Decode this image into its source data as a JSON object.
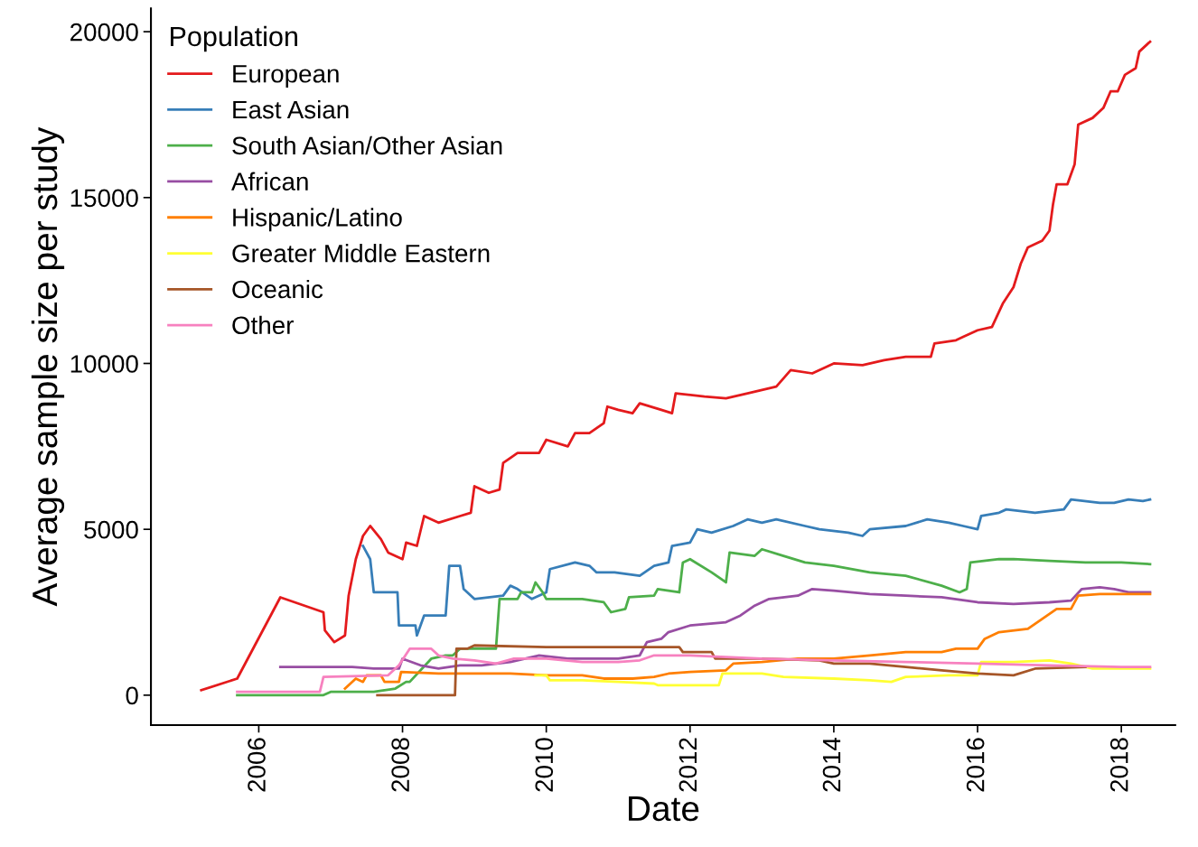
{
  "chart_data": {
    "type": "line",
    "xlabel": "Date",
    "ylabel": "Average sample size per study",
    "legend_title": "Population",
    "legend": "top left",
    "grid": false,
    "xlim": [
      2004.5,
      2018.75
    ],
    "xticks": [
      2006,
      2008,
      2010,
      2012,
      2014,
      2016,
      2018
    ],
    "ylim": [
      -900,
      20700
    ],
    "yticks": [
      0,
      5000,
      10000,
      15000,
      20000
    ],
    "series": [
      {
        "name": "European",
        "color": "#e41a1c",
        "x": [
          2005.2,
          2005.7,
          2006.3,
          2006.9,
          2006.92,
          2007.05,
          2007.2,
          2007.25,
          2007.35,
          2007.45,
          2007.55,
          2007.7,
          2007.8,
          2008.0,
          2008.05,
          2008.2,
          2008.3,
          2008.5,
          2008.8,
          2008.95,
          2009.0,
          2009.2,
          2009.35,
          2009.4,
          2009.6,
          2009.9,
          2010.0,
          2010.3,
          2010.4,
          2010.6,
          2010.8,
          2010.85,
          2011.0,
          2011.2,
          2011.3,
          2011.6,
          2011.75,
          2011.8,
          2012.2,
          2012.5,
          2012.8,
          2013.0,
          2013.2,
          2013.4,
          2013.7,
          2014.0,
          2014.4,
          2014.7,
          2015.0,
          2015.35,
          2015.4,
          2015.7,
          2015.8,
          2016.0,
          2016.2,
          2016.35,
          2016.5,
          2016.6,
          2016.7,
          2016.9,
          2017.0,
          2017.05,
          2017.1,
          2017.25,
          2017.35,
          2017.4,
          2017.6,
          2017.75,
          2017.85,
          2017.95,
          2018.05,
          2018.2,
          2018.25,
          2018.4
        ],
        "values": [
          150,
          500,
          2950,
          2500,
          1950,
          1600,
          1800,
          3000,
          4100,
          4800,
          5100,
          4700,
          4300,
          4100,
          4600,
          4500,
          5400,
          5200,
          5400,
          5500,
          6300,
          6100,
          6200,
          7000,
          7300,
          7300,
          7700,
          7500,
          7900,
          7900,
          8200,
          8700,
          8600,
          8500,
          8800,
          8600,
          8500,
          9100,
          9000,
          8950,
          9100,
          9200,
          9300,
          9800,
          9700,
          10000,
          9950,
          10100,
          10200,
          10200,
          10600,
          10700,
          10800,
          11000,
          11100,
          11800,
          12300,
          13000,
          13500,
          13700,
          14000,
          14800,
          15400,
          15400,
          16000,
          17200,
          17400,
          17700,
          18200,
          18200,
          18700,
          18900,
          19400,
          19700
        ]
      },
      {
        "name": "East Asian",
        "color": "#377eb8",
        "x": [
          2007.45,
          2007.55,
          2007.6,
          2007.93,
          2007.95,
          2008.18,
          2008.2,
          2008.3,
          2008.6,
          2008.65,
          2008.8,
          2008.85,
          2009.0,
          2009.4,
          2009.5,
          2009.6,
          2009.8,
          2010.0,
          2010.05,
          2010.4,
          2010.6,
          2010.7,
          2010.95,
          2011.3,
          2011.5,
          2011.7,
          2011.75,
          2012.0,
          2012.1,
          2012.3,
          2012.6,
          2012.8,
          2013.0,
          2013.2,
          2013.6,
          2013.8,
          2014.2,
          2014.4,
          2014.5,
          2015.0,
          2015.3,
          2015.6,
          2015.8,
          2016.0,
          2016.05,
          2016.3,
          2016.4,
          2016.8,
          2017.2,
          2017.3,
          2017.7,
          2017.9,
          2018.1,
          2018.3,
          2018.4
        ],
        "values": [
          4500,
          4100,
          3100,
          3100,
          2100,
          2100,
          1800,
          2400,
          2400,
          3900,
          3900,
          3200,
          2900,
          3000,
          3300,
          3200,
          2900,
          3100,
          3800,
          4000,
          3900,
          3700,
          3700,
          3600,
          3900,
          4000,
          4500,
          4600,
          5000,
          4900,
          5100,
          5300,
          5200,
          5300,
          5100,
          5000,
          4900,
          4800,
          5000,
          5100,
          5300,
          5200,
          5100,
          5000,
          5400,
          5500,
          5600,
          5500,
          5600,
          5900,
          5800,
          5800,
          5900,
          5850,
          5900
        ]
      },
      {
        "name": "South Asian/Other Asian",
        "color": "#4daf4a",
        "x": [
          2005.7,
          2006.9,
          2007.0,
          2007.6,
          2007.9,
          2008.05,
          2008.1,
          2008.4,
          2008.6,
          2008.7,
          2008.8,
          2009.3,
          2009.35,
          2009.6,
          2009.65,
          2009.8,
          2009.85,
          2009.95,
          2010.0,
          2010.5,
          2010.8,
          2010.9,
          2011.1,
          2011.15,
          2011.5,
          2011.55,
          2011.85,
          2011.9,
          2012.0,
          2012.3,
          2012.5,
          2012.55,
          2012.9,
          2013.0,
          2013.3,
          2013.6,
          2014.0,
          2014.5,
          2015.0,
          2015.5,
          2015.75,
          2015.85,
          2015.9,
          2016.3,
          2016.5,
          2017.0,
          2017.5,
          2018.0,
          2018.4
        ],
        "values": [
          0,
          0,
          100,
          100,
          200,
          400,
          400,
          1100,
          1200,
          1200,
          1400,
          1400,
          2900,
          2900,
          3100,
          3100,
          3400,
          3100,
          2900,
          2900,
          2800,
          2500,
          2600,
          2950,
          3000,
          3200,
          3100,
          4000,
          4100,
          3700,
          3400,
          4300,
          4200,
          4400,
          4200,
          4000,
          3900,
          3700,
          3600,
          3300,
          3100,
          3200,
          4000,
          4100,
          4100,
          4050,
          4000,
          4000,
          3950
        ]
      },
      {
        "name": "African",
        "color": "#984ea3",
        "x": [
          2006.3,
          2007.3,
          2007.6,
          2007.95,
          2008.0,
          2008.25,
          2008.5,
          2008.8,
          2009.1,
          2009.5,
          2009.9,
          2010.3,
          2011.0,
          2011.3,
          2011.4,
          2011.6,
          2011.7,
          2012.0,
          2012.5,
          2012.7,
          2012.9,
          2013.1,
          2013.5,
          2013.7,
          2014.0,
          2014.5,
          2015.0,
          2015.5,
          2016.0,
          2016.5,
          2017.0,
          2017.3,
          2017.45,
          2017.7,
          2017.9,
          2018.1,
          2018.4
        ],
        "values": [
          850,
          850,
          800,
          800,
          1100,
          900,
          800,
          900,
          900,
          1000,
          1200,
          1100,
          1100,
          1200,
          1600,
          1700,
          1900,
          2100,
          2200,
          2400,
          2700,
          2900,
          3000,
          3200,
          3150,
          3050,
          3000,
          2950,
          2800,
          2750,
          2800,
          2850,
          3200,
          3250,
          3200,
          3100,
          3100
        ]
      },
      {
        "name": "Hispanic/Latino",
        "color": "#ff7f00",
        "x": [
          2007.2,
          2007.35,
          2007.45,
          2007.5,
          2007.7,
          2007.75,
          2007.95,
          2007.98,
          2008.5,
          2009.0,
          2009.5,
          2010.0,
          2010.5,
          2010.8,
          2011.2,
          2011.5,
          2011.7,
          2012.0,
          2012.5,
          2012.6,
          2013.0,
          2013.5,
          2014.0,
          2014.5,
          2015.0,
          2015.5,
          2015.7,
          2016.0,
          2016.1,
          2016.3,
          2016.7,
          2016.9,
          2017.1,
          2017.3,
          2017.4,
          2017.7,
          2018.0,
          2018.4
        ],
        "values": [
          200,
          500,
          400,
          600,
          600,
          400,
          400,
          700,
          650,
          650,
          650,
          600,
          600,
          500,
          500,
          550,
          650,
          700,
          750,
          950,
          1000,
          1100,
          1100,
          1200,
          1300,
          1300,
          1400,
          1400,
          1700,
          1900,
          2000,
          2300,
          2600,
          2600,
          3000,
          3050,
          3050,
          3050
        ]
      },
      {
        "name": "Greater Middle Eastern",
        "color": "#ffff33",
        "x": [
          2009.85,
          2010.0,
          2010.05,
          2010.5,
          2011.0,
          2011.5,
          2011.55,
          2012.4,
          2012.45,
          2013.0,
          2013.3,
          2014.0,
          2014.5,
          2014.8,
          2015.0,
          2015.6,
          2016.0,
          2016.05,
          2016.5,
          2017.0,
          2017.3,
          2017.6,
          2018.0,
          2018.4
        ],
        "values": [
          600,
          600,
          450,
          450,
          400,
          350,
          300,
          300,
          650,
          650,
          550,
          500,
          450,
          400,
          550,
          600,
          600,
          1000,
          1000,
          1050,
          950,
          800,
          800,
          800
        ]
      },
      {
        "name": "Oceanic",
        "color": "#a65628",
        "x": [
          2007.65,
          2008.73,
          2008.75,
          2008.9,
          2009.0,
          2010.0,
          2011.0,
          2011.85,
          2011.9,
          2012.3,
          2012.35,
          2013.0,
          2013.8,
          2014.0,
          2014.5,
          2015.0,
          2015.5,
          2016.0,
          2016.5,
          2016.8,
          2017.5
        ],
        "values": [
          0,
          0,
          1400,
          1400,
          1500,
          1450,
          1450,
          1450,
          1300,
          1300,
          1100,
          1100,
          1050,
          950,
          950,
          850,
          750,
          650,
          600,
          800,
          850
        ]
      },
      {
        "name": "Other",
        "color": "#f781bf",
        "x": [
          2005.7,
          2006.85,
          2006.9,
          2007.8,
          2007.95,
          2008.1,
          2008.4,
          2008.5,
          2008.7,
          2009.0,
          2009.3,
          2009.55,
          2010.0,
          2010.5,
          2011.0,
          2011.3,
          2011.5,
          2012.0,
          2012.5,
          2013.0,
          2014.0,
          2015.0,
          2016.0,
          2017.0,
          2018.0,
          2018.4
        ],
        "values": [
          100,
          100,
          550,
          600,
          900,
          1400,
          1400,
          1200,
          1100,
          1050,
          950,
          1100,
          1100,
          1000,
          1000,
          1050,
          1200,
          1200,
          1150,
          1100,
          1050,
          1000,
          950,
          900,
          850,
          850
        ]
      }
    ]
  }
}
